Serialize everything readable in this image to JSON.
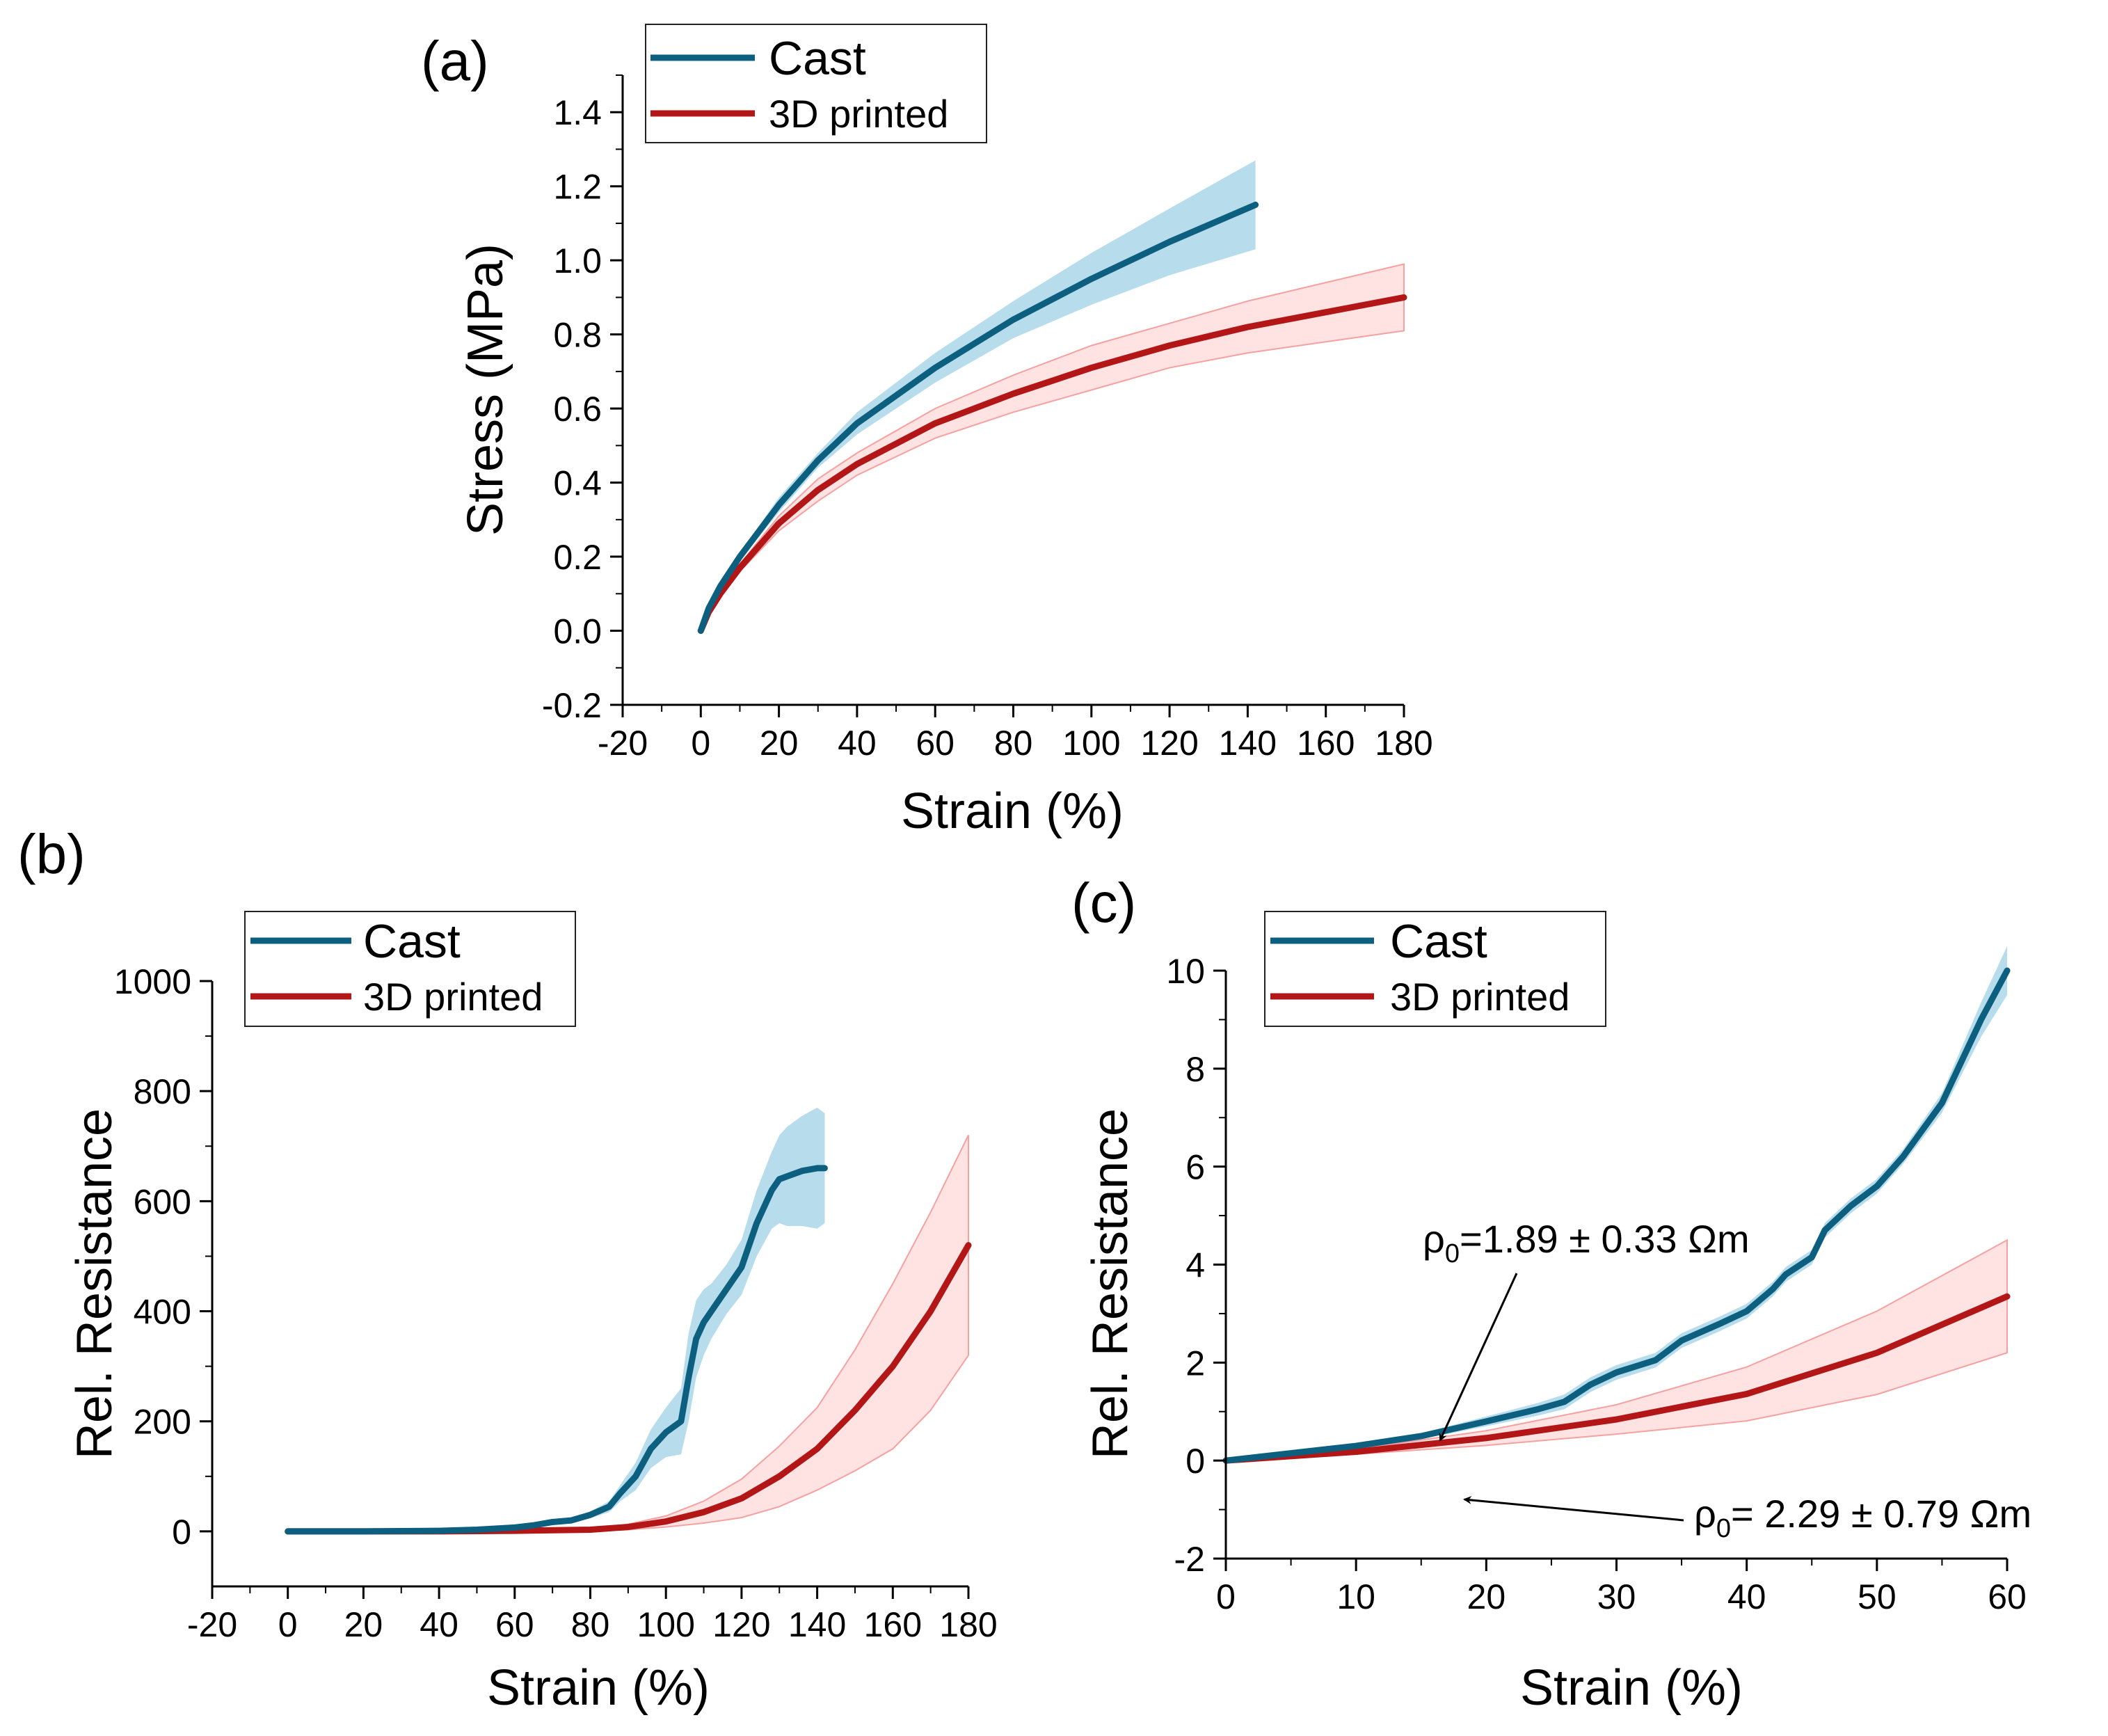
{
  "colors": {
    "cast": "#0d5f7f",
    "cast_band": "#9fd0e6",
    "printed": "#b21616",
    "printed_band": "#ffd3d3",
    "printed_band_edge": "#f6a0a0"
  },
  "chart_data": [
    {
      "panel_label": "(a)",
      "type": "line",
      "xlabel": "Strain (%)",
      "ylabel": "Stress (MPa)",
      "xlim": [
        -20,
        180
      ],
      "ylim": [
        -0.2,
        1.5
      ],
      "xticks": [
        -20,
        0,
        20,
        40,
        60,
        80,
        100,
        120,
        140,
        160,
        180
      ],
      "yticks": [
        -0.2,
        0.0,
        0.2,
        0.4,
        0.6,
        0.8,
        1.0,
        1.2,
        1.4
      ],
      "xtick_labels": [
        "-20",
        "0",
        "20",
        "40",
        "60",
        "80",
        "100",
        "120",
        "140",
        "160",
        "180"
      ],
      "ytick_labels": [
        "-0.2",
        "0.0",
        "0.2",
        "0.4",
        "0.6",
        "0.8",
        "1.0",
        "1.2",
        "1.4"
      ],
      "legend": [
        "Cast",
        "3D printed"
      ],
      "series": [
        {
          "name": "Cast",
          "x": [
            0,
            2,
            5,
            10,
            20,
            30,
            40,
            60,
            80,
            100,
            120,
            142
          ],
          "y": [
            0,
            0.06,
            0.12,
            0.2,
            0.34,
            0.46,
            0.56,
            0.71,
            0.84,
            0.95,
            1.05,
            1.15
          ],
          "err": [
            0,
            0.01,
            0.01,
            0.01,
            0.02,
            0.02,
            0.03,
            0.04,
            0.05,
            0.07,
            0.09,
            0.12
          ]
        },
        {
          "name": "3D printed",
          "x": [
            0,
            2,
            5,
            10,
            20,
            30,
            40,
            60,
            80,
            100,
            120,
            140,
            160,
            180
          ],
          "y": [
            0,
            0.05,
            0.1,
            0.17,
            0.29,
            0.38,
            0.45,
            0.56,
            0.64,
            0.71,
            0.77,
            0.82,
            0.86,
            0.9
          ],
          "err": [
            0,
            0.01,
            0.01,
            0.01,
            0.02,
            0.03,
            0.03,
            0.04,
            0.05,
            0.06,
            0.06,
            0.07,
            0.08,
            0.09
          ]
        }
      ]
    },
    {
      "panel_label": "(b)",
      "type": "line",
      "xlabel": "Strain (%)",
      "ylabel": "Rel. Resistance",
      "xlim": [
        -20,
        180
      ],
      "ylim": [
        -100,
        1000
      ],
      "xticks": [
        -20,
        0,
        20,
        40,
        60,
        80,
        100,
        120,
        140,
        160,
        180
      ],
      "yticks": [
        0,
        200,
        400,
        600,
        800,
        1000
      ],
      "xtick_labels": [
        "-20",
        "0",
        "20",
        "40",
        "60",
        "80",
        "100",
        "120",
        "140",
        "160",
        "180"
      ],
      "ytick_labels": [
        "0",
        "200",
        "400",
        "600",
        "800",
        "1000"
      ],
      "legend": [
        "Cast",
        "3D printed"
      ],
      "series": [
        {
          "name": "Cast",
          "x": [
            0,
            20,
            40,
            50,
            60,
            65,
            70,
            75,
            80,
            85,
            88,
            92,
            96,
            100,
            104,
            106,
            108,
            110,
            112,
            116,
            120,
            124,
            128,
            130,
            132,
            136,
            140,
            142
          ],
          "y": [
            0,
            0,
            1,
            3,
            7,
            11,
            17,
            20,
            30,
            45,
            70,
            100,
            150,
            180,
            200,
            280,
            350,
            380,
            400,
            440,
            480,
            560,
            620,
            640,
            645,
            655,
            660,
            660
          ],
          "err": [
            0,
            0,
            0,
            0,
            1,
            2,
            3,
            4,
            6,
            10,
            15,
            25,
            35,
            45,
            60,
            80,
            70,
            60,
            50,
            45,
            50,
            60,
            70,
            80,
            90,
            100,
            110,
            100
          ]
        },
        {
          "name": "3D printed",
          "x": [
            0,
            20,
            40,
            60,
            80,
            90,
            100,
            110,
            120,
            130,
            140,
            150,
            160,
            170,
            180
          ],
          "y": [
            0,
            0,
            0,
            1,
            3,
            8,
            18,
            35,
            60,
            100,
            150,
            220,
            300,
            400,
            520
          ],
          "err": [
            0,
            0,
            0,
            0,
            2,
            5,
            10,
            20,
            35,
            55,
            75,
            110,
            150,
            180,
            200
          ]
        }
      ]
    },
    {
      "panel_label": "(c)",
      "type": "line",
      "xlabel": "Strain (%)",
      "ylabel": "Rel. Resistance",
      "xlim": [
        0,
        60
      ],
      "ylim": [
        -2,
        10
      ],
      "xticks": [
        0,
        10,
        20,
        30,
        40,
        50,
        60
      ],
      "yticks": [
        -2,
        0,
        2,
        4,
        6,
        8,
        10
      ],
      "xtick_labels": [
        "0",
        "10",
        "20",
        "30",
        "40",
        "50",
        "60"
      ],
      "ytick_labels": [
        "-2",
        "0",
        "2",
        "4",
        "6",
        "8",
        "10"
      ],
      "legend": [
        "Cast",
        "3D printed"
      ],
      "series": [
        {
          "name": "Cast",
          "x": [
            0,
            5,
            10,
            15,
            20,
            24,
            26,
            28,
            30,
            33,
            35,
            38,
            40,
            42,
            43,
            45,
            46,
            48,
            50,
            52,
            55,
            58,
            60
          ],
          "y": [
            0,
            0.15,
            0.3,
            0.5,
            0.8,
            1.05,
            1.2,
            1.55,
            1.8,
            2.05,
            2.45,
            2.8,
            3.05,
            3.5,
            3.8,
            4.15,
            4.7,
            5.2,
            5.6,
            6.2,
            7.3,
            9.0,
            10.0
          ],
          "err": [
            0,
            0.02,
            0.04,
            0.06,
            0.1,
            0.13,
            0.15,
            0.15,
            0.15,
            0.15,
            0.15,
            0.15,
            0.15,
            0.15,
            0.15,
            0.15,
            0.15,
            0.15,
            0.15,
            0.15,
            0.2,
            0.35,
            0.5
          ]
        },
        {
          "name": "3D printed",
          "x": [
            0,
            10,
            20,
            30,
            40,
            50,
            60
          ],
          "y": [
            0,
            0.18,
            0.46,
            0.84,
            1.36,
            2.2,
            3.35
          ],
          "err": [
            0,
            0.05,
            0.15,
            0.3,
            0.55,
            0.85,
            1.15
          ]
        }
      ],
      "annotations": [
        {
          "base": "ρ",
          "sub": "0",
          "text": "=1.89 ± 0.33 Ωm",
          "points_to": [
            17,
            0.7
          ]
        },
        {
          "base": "ρ",
          "sub": "0",
          "text": "= 2.29 ± 0.79 Ωm",
          "points_to": [
            18,
            -0.2
          ]
        }
      ]
    }
  ]
}
